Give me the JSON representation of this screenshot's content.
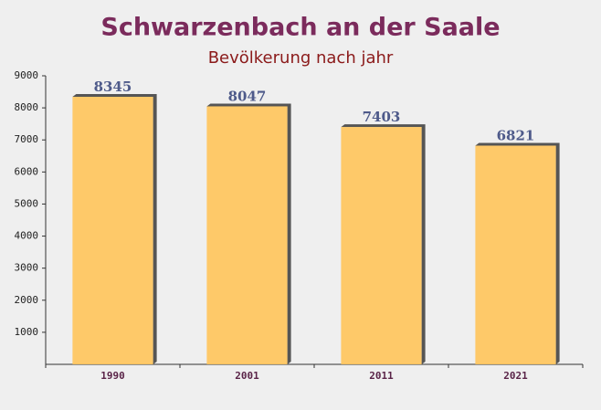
{
  "chart_data": {
    "type": "bar",
    "title": "Schwarzenbach an der Saale",
    "subtitle": "Bevölkerung nach jahr",
    "categories": [
      "1990",
      "2001",
      "2011",
      "2021"
    ],
    "values": [
      8345,
      8047,
      7403,
      6821
    ],
    "color": "#ffc45a",
    "ylim": [
      0,
      9000
    ],
    "yticks": [
      1000,
      2000,
      3000,
      4000,
      5000,
      6000,
      7000,
      8000,
      9000
    ]
  }
}
